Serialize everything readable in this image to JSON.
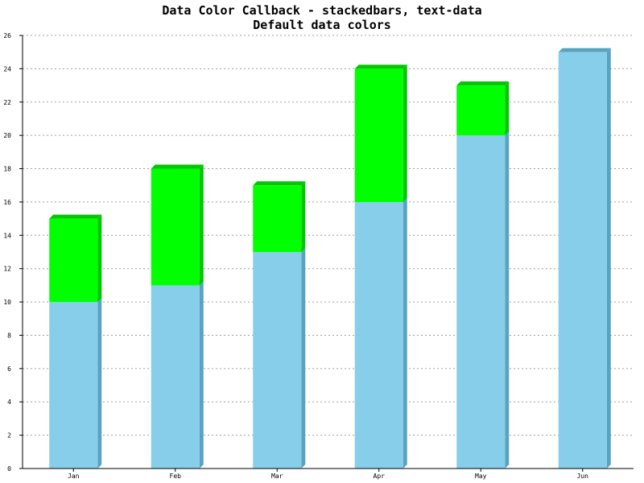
{
  "chart_data": {
    "type": "bar",
    "stacked": true,
    "title": "Data Color Callback - stackedbars, text-data",
    "subtitle": "Default data colors",
    "xlabel": "",
    "ylabel": "",
    "categories": [
      "Jan",
      "Feb",
      "Mar",
      "Apr",
      "May",
      "Jun"
    ],
    "series": [
      {
        "values": [
          10,
          11,
          13,
          16,
          20,
          25
        ],
        "color": "#87ceeb",
        "side_color": "#58a3c0"
      },
      {
        "values": [
          5,
          7,
          4,
          8,
          3,
          0
        ],
        "color": "#00ff00",
        "side_color": "#00c800"
      }
    ],
    "ylim": [
      0,
      26
    ],
    "yticks": [
      0,
      2,
      4,
      6,
      8,
      10,
      12,
      14,
      16,
      18,
      20,
      22,
      24,
      26
    ],
    "grid": true,
    "shading": "3d"
  }
}
